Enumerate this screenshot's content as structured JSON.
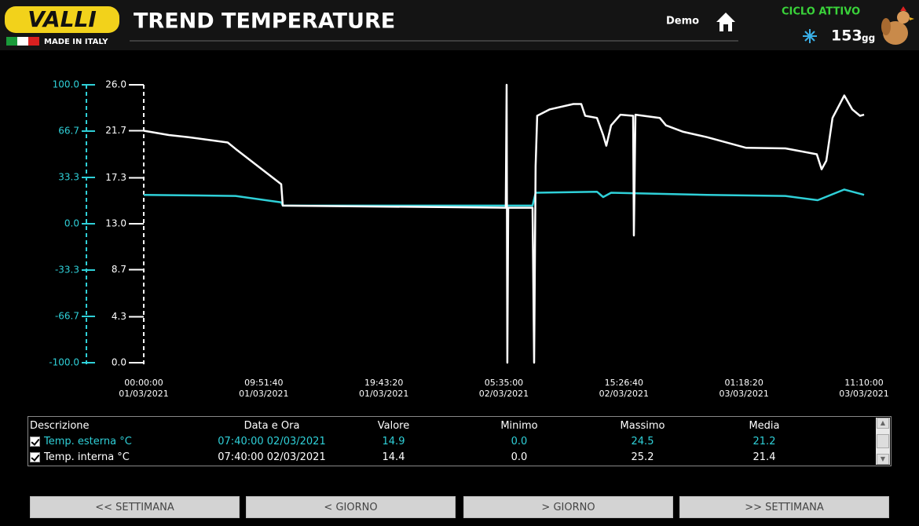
{
  "header": {
    "logo": "VALLI",
    "made_in": "MADE IN ITALY",
    "title": "TREND TEMPERATURE",
    "user": "Demo",
    "cycle_status": "CICLO ATTIVO",
    "days": "153",
    "days_unit": "gg"
  },
  "chart_data": {
    "type": "line",
    "xlim": [
      0,
      59.1667
    ],
    "xticks": [
      {
        "value": 0,
        "label": "00:00:00\n01/03/2021"
      },
      {
        "value": 9.8611,
        "label": "09:51:40\n01/03/2021"
      },
      {
        "value": 19.7222,
        "label": "19:43:20\n01/03/2021"
      },
      {
        "value": 29.5833,
        "label": "05:35:00\n02/03/2021"
      },
      {
        "value": 39.4444,
        "label": "15:26:40\n02/03/2021"
      },
      {
        "value": 49.3056,
        "label": "01:18:20\n03/03/2021"
      },
      {
        "value": 59.1667,
        "label": "11:10:00\n03/03/2021"
      }
    ],
    "ylim": [
      0,
      26
    ],
    "yticks": [
      {
        "value": 0,
        "label": "0.0"
      },
      4.3,
      8.7,
      {
        "value": 13,
        "label": "13.0"
      },
      17.3,
      21.7,
      {
        "value": 26,
        "label": "26.0"
      }
    ],
    "y_color": "#ffffff",
    "y2lim": [
      -100,
      100
    ],
    "y2ticks": [
      {
        "value": -100,
        "label": "-100.0"
      },
      -66.7,
      -33.3,
      {
        "value": 0,
        "label": "0.0"
      },
      33.3,
      66.7,
      {
        "value": 100,
        "label": "100.0"
      }
    ],
    "y2_color": "#2fd0d8",
    "series": [
      {
        "color": "#2fd0d8",
        "x": [
          0,
          7.55,
          11.29,
          11.42,
          31.94,
          32.19,
          37.23,
          37.74,
          38.39,
          46.26,
          52.71,
          55.36,
          57.55,
          59.17
        ],
        "values": [
          15.7,
          15.6,
          15.0,
          14.7,
          14.7,
          15.9,
          16.0,
          15.5,
          15.9,
          15.7,
          15.6,
          15.2,
          16.2,
          15.7
        ]
      },
      {
        "color": "#ffffff",
        "x": [
          0,
          2.06,
          3.68,
          6.9,
          7.55,
          11.29,
          11.42,
          29.74,
          29.81,
          29.87,
          29.94,
          31.94,
          32.07,
          32.19,
          32.32,
          33.36,
          35.29,
          35.94,
          36.26,
          37.23,
          37.74,
          38.0,
          38.39,
          39.16,
          40.2,
          40.26,
          40.39,
          42.39,
          42.9,
          44.32,
          46.26,
          49.49,
          52.71,
          55.29,
          55.68,
          56.07,
          56.58,
          57.55,
          58.2,
          58.84,
          59.17
        ],
        "values": [
          21.7,
          21.3,
          21.1,
          20.6,
          20.0,
          16.7,
          14.7,
          14.5,
          26.0,
          0,
          14.5,
          14.5,
          0,
          18.4,
          23.1,
          23.7,
          24.2,
          24.2,
          23.1,
          22.9,
          21.3,
          20.3,
          22.2,
          23.2,
          23.1,
          11.9,
          23.2,
          22.9,
          22.2,
          21.6,
          21.1,
          20.1,
          20.05,
          19.5,
          18.1,
          18.9,
          22.9,
          25.0,
          23.7,
          23.1,
          23.2
        ]
      }
    ]
  },
  "table": {
    "columns": [
      "Descrizione",
      "Data e Ora",
      "Valore",
      "Minimo",
      "Massimo",
      "Media"
    ],
    "rows": [
      [
        "Temp. esterna °C",
        "07:40:00 02/03/2021",
        "14.9",
        "0.0",
        "24.5",
        "21.2"
      ],
      [
        "Temp. interna °C",
        "07:40:00 02/03/2021",
        "14.4",
        "0.0",
        "25.2",
        "21.4"
      ]
    ]
  },
  "buttons": [
    "<< SETTIMANA",
    "< GIORNO",
    "> GIORNO",
    ">> SETTIMANA"
  ]
}
